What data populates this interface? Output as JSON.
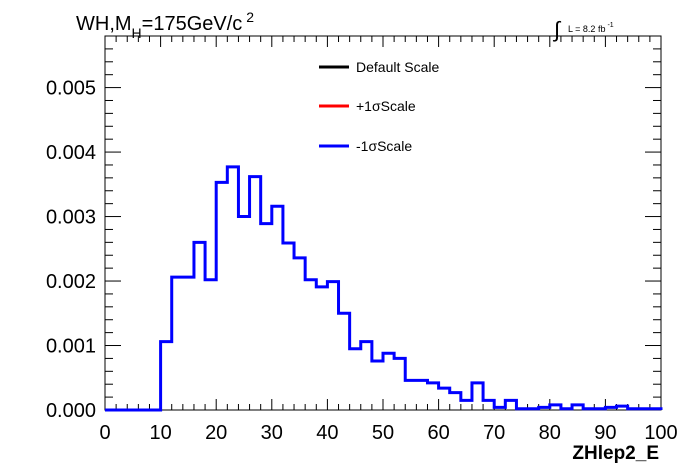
{
  "chart_data": {
    "type": "histogram",
    "title_main": "WH,M",
    "title_sub": "H",
    "title_tail": "=175GeV/c",
    "title_sup": "2",
    "lumi_label": "L = 8.2 fb",
    "lumi_sup": "-1",
    "lumi_symbol": "∫",
    "xlabel": "ZHlep2_E",
    "xlim": [
      0,
      100
    ],
    "ylim": [
      0,
      0.0058
    ],
    "x_ticks": [
      0,
      10,
      20,
      30,
      40,
      50,
      60,
      70,
      80,
      90,
      100
    ],
    "x_tick_labels": [
      "0",
      "10",
      "20",
      "30",
      "40",
      "50",
      "60",
      "70",
      "80",
      "90",
      "100"
    ],
    "y_ticks": [
      0,
      0.001,
      0.002,
      0.003,
      0.004,
      0.005
    ],
    "y_tick_labels": [
      "0.000",
      "0.001",
      "0.002",
      "0.003",
      "0.004",
      "0.005"
    ],
    "bin_width": 2,
    "legend": [
      {
        "label": "Default Scale",
        "color": "#000000"
      },
      {
        "label": "+1σScale",
        "color": "#ff0000"
      },
      {
        "label": "-1σScale",
        "color": "#0000ff"
      }
    ],
    "series": [
      {
        "name": "-1σScale",
        "color": "#0000ff",
        "bin_edges_start": 0,
        "values": [
          0,
          0,
          0,
          0,
          0,
          0.00106,
          0.00206,
          0.00206,
          0.0026,
          0.00202,
          0.00353,
          0.00377,
          0.003,
          0.00362,
          0.00289,
          0.00316,
          0.00259,
          0.00236,
          0.00202,
          0.00191,
          0.00199,
          0.0015,
          0.00095,
          0.00106,
          0.00076,
          0.00088,
          0.0008,
          0.00046,
          0.00046,
          0.00042,
          0.00034,
          0.00027,
          0.00015,
          0.00042,
          0.00015,
          4e-05,
          0.00015,
          2e-05,
          2e-05,
          4e-05,
          8e-05,
          2e-05,
          8e-05,
          2e-05,
          2e-05,
          4e-05,
          6e-05,
          2e-05,
          2e-05,
          2e-05
        ]
      }
    ]
  }
}
